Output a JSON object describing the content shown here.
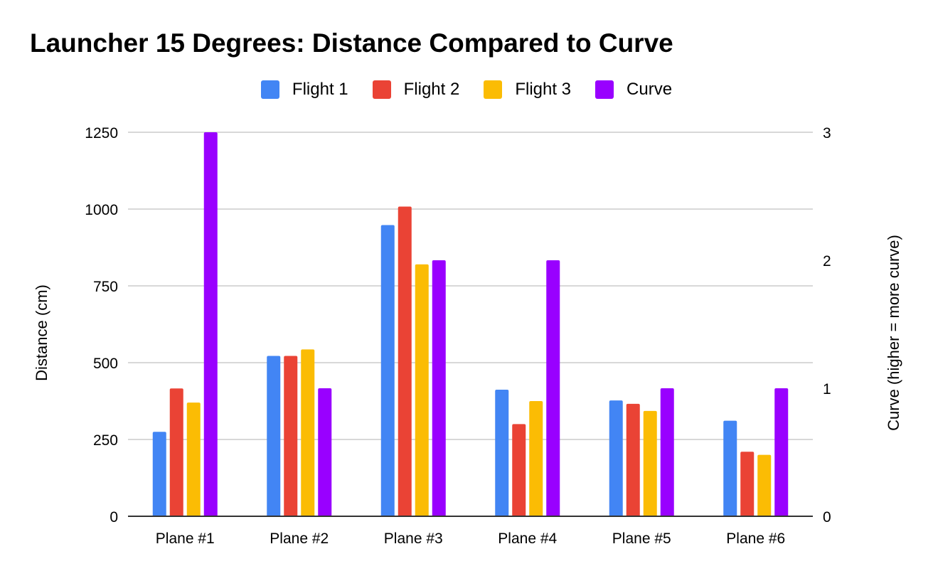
{
  "chart_data": {
    "type": "bar",
    "title": "Launcher 15 Degrees: Distance Compared to Curve",
    "categories": [
      "Plane #1",
      "Plane #2",
      "Plane #3",
      "Plane #4",
      "Plane #5",
      "Plane #6"
    ],
    "series": [
      {
        "name": "Flight 1",
        "color": "#4285F4",
        "axis": "left",
        "values": [
          275,
          522,
          948,
          412,
          377,
          311
        ]
      },
      {
        "name": "Flight 2",
        "color": "#EA4335",
        "axis": "left",
        "values": [
          416,
          522,
          1008,
          300,
          366,
          210
        ]
      },
      {
        "name": "Flight 3",
        "color": "#FBBC04",
        "axis": "left",
        "values": [
          370,
          543,
          820,
          375,
          343,
          200
        ]
      },
      {
        "name": "Curve",
        "color": "#9900FF",
        "axis": "right",
        "values": [
          3,
          1,
          2,
          2,
          1,
          1
        ]
      }
    ],
    "ylabel": "Distance (cm)",
    "ylabel_right": "Curve (higher = more curve)",
    "ylim": [
      0,
      1250
    ],
    "ylim_right": [
      0,
      3
    ],
    "yticks": [
      "0",
      "250",
      "500",
      "750",
      "1000",
      "1250"
    ],
    "yticks_right": [
      "0",
      "1",
      "2",
      "3"
    ],
    "grid": true,
    "legend_position": "top"
  }
}
